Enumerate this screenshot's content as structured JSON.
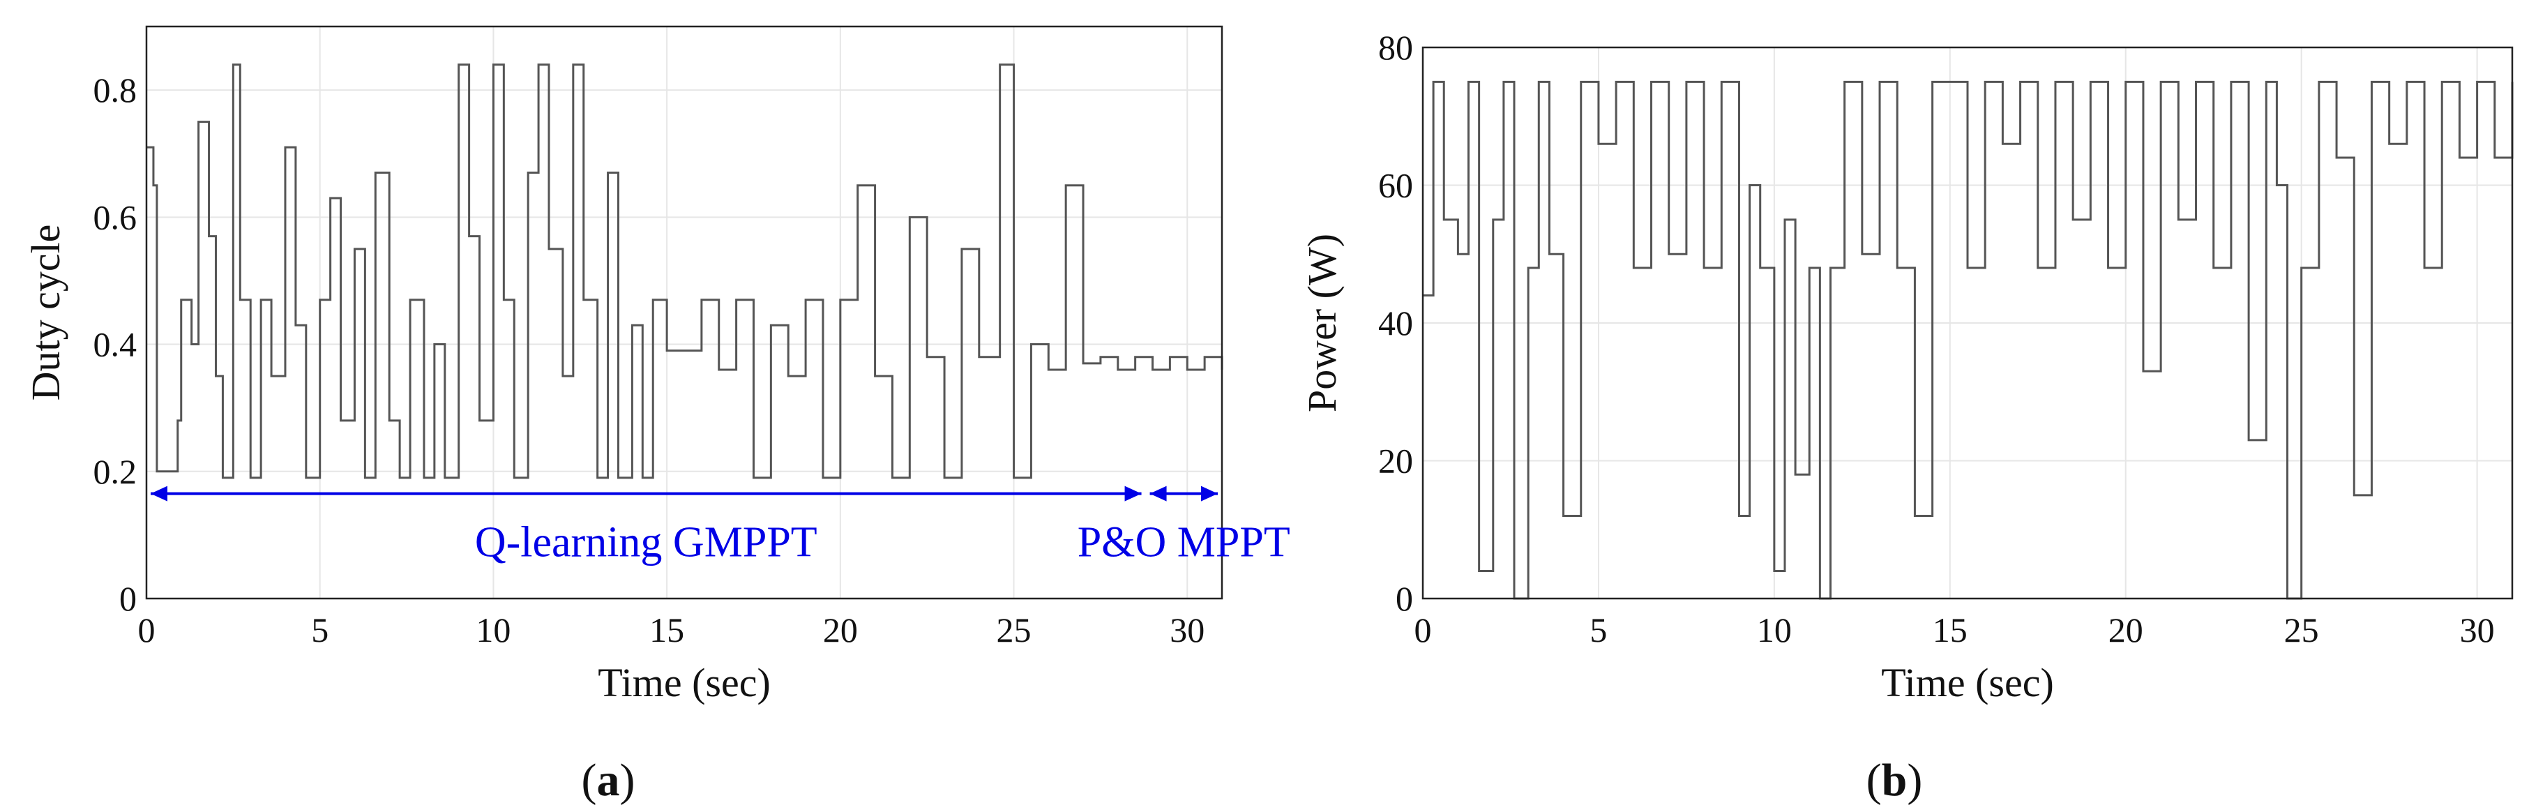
{
  "chart_data": [
    {
      "type": "line",
      "panel_label": "a",
      "xlabel": "Time (sec)",
      "ylabel": "Duty cycle",
      "xlim": [
        0,
        31
      ],
      "ylim": [
        0,
        0.9
      ],
      "xticks": [
        "0",
        "5",
        "10",
        "15",
        "20",
        "25",
        "30"
      ],
      "yticks": [
        "0",
        "0.2",
        "0.4",
        "0.6",
        "0.8"
      ],
      "grid": true,
      "line_color": "#555555",
      "series": [
        {
          "x": [
            0,
            0.2,
            0.3,
            0.6,
            0.9,
            1.0,
            1.3,
            1.5,
            1.8,
            2.0,
            2.2,
            2.5,
            2.7,
            3.0,
            3.3,
            3.6,
            4.0,
            4.3,
            4.6,
            5.0,
            5.3,
            5.6,
            6.0,
            6.3,
            6.6,
            7.0,
            7.3,
            7.6,
            8.0,
            8.3,
            8.6,
            9.0,
            9.3,
            9.6,
            10.0,
            10.3,
            10.6,
            11.0,
            11.3,
            11.6,
            12.0,
            12.3,
            12.6,
            13.0,
            13.3,
            13.6,
            14.0,
            14.3,
            14.6,
            15.0,
            15.5,
            16.0,
            16.5,
            17.0,
            17.5,
            18.0,
            18.5,
            19.0,
            19.5,
            20.0,
            20.5,
            21.0,
            21.5,
            22.0,
            22.5,
            23.0,
            23.5,
            24.0,
            24.3,
            24.6,
            25.0,
            25.5,
            26.0,
            26.5,
            27.0,
            27.5,
            28.0,
            28.5,
            29.0,
            29.5,
            30.0,
            30.5,
            31.0
          ],
          "y": [
            0.71,
            0.65,
            0.2,
            0.2,
            0.28,
            0.47,
            0.4,
            0.75,
            0.57,
            0.35,
            0.19,
            0.84,
            0.47,
            0.19,
            0.47,
            0.35,
            0.71,
            0.43,
            0.19,
            0.47,
            0.63,
            0.28,
            0.55,
            0.19,
            0.67,
            0.28,
            0.19,
            0.47,
            0.19,
            0.4,
            0.19,
            0.84,
            0.57,
            0.28,
            0.84,
            0.47,
            0.19,
            0.67,
            0.84,
            0.55,
            0.35,
            0.84,
            0.47,
            0.19,
            0.67,
            0.19,
            0.43,
            0.19,
            0.47,
            0.39,
            0.39,
            0.47,
            0.36,
            0.47,
            0.19,
            0.43,
            0.35,
            0.47,
            0.19,
            0.47,
            0.65,
            0.35,
            0.19,
            0.6,
            0.38,
            0.19,
            0.55,
            0.38,
            0.38,
            0.84,
            0.19,
            0.4,
            0.36,
            0.65,
            0.37,
            0.38,
            0.36,
            0.38,
            0.36,
            0.38,
            0.36,
            0.38,
            0.36
          ]
        }
      ],
      "annotations": [
        {
          "text": "Q-learning GMPPT",
          "x_start": 0,
          "x_end": 28.8
        },
        {
          "text": "P&O MPPT",
          "x_start": 28.8,
          "x_end": 31
        }
      ],
      "annotation_color": "#0000e6"
    },
    {
      "type": "line",
      "panel_label": "b",
      "xlabel": "Time (sec)",
      "ylabel": "Power (W)",
      "xlim": [
        0,
        31
      ],
      "ylim": [
        0,
        80
      ],
      "xticks": [
        "0",
        "5",
        "10",
        "15",
        "20",
        "25",
        "30"
      ],
      "yticks": [
        "0",
        "20",
        "40",
        "60",
        "80"
      ],
      "grid": true,
      "line_color": "#555555",
      "series": [
        {
          "x": [
            0,
            0.3,
            0.6,
            1.0,
            1.3,
            1.6,
            2.0,
            2.3,
            2.6,
            3.0,
            3.3,
            3.6,
            4.0,
            4.5,
            5.0,
            5.5,
            6.0,
            6.5,
            7.0,
            7.5,
            8.0,
            8.5,
            9.0,
            9.3,
            9.6,
            10.0,
            10.3,
            10.6,
            11.0,
            11.3,
            11.6,
            12.0,
            12.5,
            13.0,
            13.5,
            14.0,
            14.5,
            15.0,
            15.5,
            16.0,
            16.5,
            17.0,
            17.5,
            18.0,
            18.5,
            19.0,
            19.5,
            20.0,
            20.5,
            21.0,
            21.5,
            22.0,
            22.5,
            23.0,
            23.5,
            24.0,
            24.3,
            24.6,
            25.0,
            25.5,
            26.0,
            26.5,
            27.0,
            27.5,
            28.0,
            28.5,
            29.0,
            29.5,
            30.0,
            30.5,
            31.0
          ],
          "y": [
            44,
            75,
            55,
            50,
            75,
            4,
            55,
            75,
            0,
            48,
            75,
            50,
            12,
            75,
            66,
            75,
            48,
            75,
            50,
            75,
            48,
            75,
            12,
            60,
            48,
            4,
            55,
            18,
            48,
            0,
            48,
            75,
            50,
            75,
            48,
            12,
            75,
            75,
            48,
            75,
            66,
            75,
            48,
            75,
            55,
            75,
            48,
            75,
            33,
            75,
            55,
            75,
            48,
            75,
            23,
            75,
            60,
            0,
            48,
            75,
            64,
            15,
            75,
            66,
            75,
            48,
            75,
            64,
            75,
            64,
            75
          ]
        }
      ]
    }
  ]
}
